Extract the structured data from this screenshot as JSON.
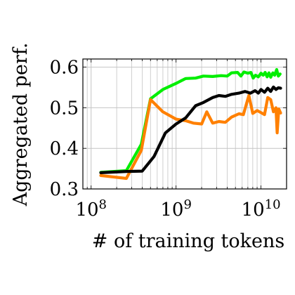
{
  "chart_data": {
    "type": "line",
    "xlabel": "# of training tokens",
    "ylabel": "Aggregated perf.",
    "xscale": "log",
    "xlim": [
      80000000,
      20000000000
    ],
    "ylim": [
      0.3,
      0.62
    ],
    "grid": true,
    "x_ticks": [
      {
        "value": 100000000,
        "base": "10",
        "exp": "8"
      },
      {
        "value": 1000000000,
        "base": "10",
        "exp": "9"
      },
      {
        "value": 10000000000,
        "base": "10",
        "exp": "10"
      }
    ],
    "y_ticks": [
      {
        "value": 0.3,
        "label": "0.3"
      },
      {
        "value": 0.4,
        "label": "0.4"
      },
      {
        "value": 0.5,
        "label": "0.5"
      },
      {
        "value": 0.6,
        "label": "0.6"
      }
    ],
    "series": [
      {
        "color": "#00ee00",
        "points": [
          [
            130000000,
            0.341
          ],
          [
            260000000,
            0.345
          ],
          [
            390000000,
            0.41
          ],
          [
            500000000,
            0.522
          ],
          [
            700000000,
            0.545
          ],
          [
            1000000000,
            0.56
          ],
          [
            1300000000,
            0.572
          ],
          [
            1700000000,
            0.573
          ],
          [
            2100000000,
            0.578
          ],
          [
            2700000000,
            0.577
          ],
          [
            3400000000,
            0.579
          ],
          [
            4000000000,
            0.578
          ],
          [
            4500000000,
            0.586
          ],
          [
            5300000000,
            0.587
          ],
          [
            5800000000,
            0.578
          ],
          [
            6300000000,
            0.588
          ],
          [
            7000000000,
            0.585
          ],
          [
            7600000000,
            0.587
          ],
          [
            8100000000,
            0.573
          ],
          [
            8600000000,
            0.58
          ],
          [
            9300000000,
            0.576
          ],
          [
            10000000000,
            0.585
          ],
          [
            10600000000,
            0.58
          ],
          [
            11200000000,
            0.587
          ],
          [
            11800000000,
            0.576
          ],
          [
            12400000000,
            0.586
          ],
          [
            13000000000,
            0.575
          ],
          [
            13800000000,
            0.586
          ],
          [
            14500000000,
            0.58
          ],
          [
            15300000000,
            0.594
          ],
          [
            16000000000,
            0.578
          ],
          [
            16800000000,
            0.583
          ]
        ]
      },
      {
        "color": "#ff8000",
        "points": [
          [
            130000000,
            0.333
          ],
          [
            260000000,
            0.326
          ],
          [
            390000000,
            0.395
          ],
          [
            500000000,
            0.52
          ],
          [
            700000000,
            0.49
          ],
          [
            1000000000,
            0.472
          ],
          [
            1300000000,
            0.468
          ],
          [
            1600000000,
            0.462
          ],
          [
            2000000000,
            0.46
          ],
          [
            2300000000,
            0.49
          ],
          [
            2700000000,
            0.462
          ],
          [
            3200000000,
            0.466
          ],
          [
            3800000000,
            0.464
          ],
          [
            4500000000,
            0.477
          ],
          [
            5500000000,
            0.485
          ],
          [
            6200000000,
            0.483
          ],
          [
            7200000000,
            0.53
          ],
          [
            8000000000,
            0.486
          ],
          [
            9000000000,
            0.493
          ],
          [
            10000000000,
            0.488
          ],
          [
            11000000000,
            0.483
          ],
          [
            12000000000,
            0.525
          ],
          [
            13000000000,
            0.52
          ],
          [
            14000000000,
            0.49
          ],
          [
            15000000000,
            0.5
          ],
          [
            15500000000,
            0.438
          ],
          [
            16200000000,
            0.497
          ],
          [
            17000000000,
            0.487
          ]
        ]
      },
      {
        "color": "#000000",
        "points": [
          [
            130000000,
            0.34
          ],
          [
            260000000,
            0.343
          ],
          [
            400000000,
            0.344
          ],
          [
            550000000,
            0.38
          ],
          [
            750000000,
            0.438
          ],
          [
            1000000000,
            0.46
          ],
          [
            1300000000,
            0.475
          ],
          [
            1700000000,
            0.505
          ],
          [
            2100000000,
            0.513
          ],
          [
            2700000000,
            0.525
          ],
          [
            3200000000,
            0.53
          ],
          [
            3800000000,
            0.528
          ],
          [
            4500000000,
            0.533
          ],
          [
            5500000000,
            0.536
          ],
          [
            6500000000,
            0.54
          ],
          [
            7500000000,
            0.536
          ],
          [
            8500000000,
            0.542
          ],
          [
            9300000000,
            0.536
          ],
          [
            10000000000,
            0.545
          ],
          [
            11000000000,
            0.538
          ],
          [
            12000000000,
            0.548
          ],
          [
            13000000000,
            0.54
          ],
          [
            14000000000,
            0.551
          ],
          [
            15000000000,
            0.545
          ],
          [
            16000000000,
            0.549
          ],
          [
            17000000000,
            0.548
          ]
        ]
      }
    ]
  }
}
